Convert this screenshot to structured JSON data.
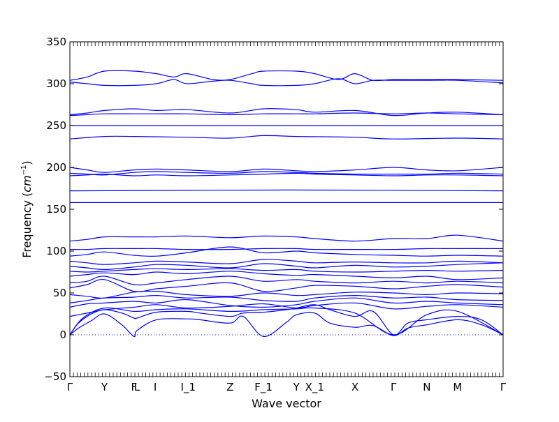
{
  "chart_data": {
    "type": "line",
    "xlabel": "Wave vector",
    "ylabel": "Frequency",
    "ylabel_unit": "cm",
    "ylabel_unit_exp": "−1",
    "ylim": [
      -50,
      350
    ],
    "yticks": [
      -50,
      0,
      50,
      100,
      150,
      200,
      250,
      300,
      350
    ],
    "x_points": [
      {
        "label": "Γ",
        "x": 0.0
      },
      {
        "label": "Y",
        "x": 0.08
      },
      {
        "label": "F",
        "x": 0.148
      },
      {
        "label": "L",
        "x": 0.155
      },
      {
        "label": "I",
        "x": 0.197
      },
      {
        "label": "I_1",
        "x": 0.273
      },
      {
        "label": "Z",
        "x": 0.37
      },
      {
        "label": "F_1",
        "x": 0.447
      },
      {
        "label": "Y",
        "x": 0.523
      },
      {
        "label": "X_1",
        "x": 0.565
      },
      {
        "label": "X",
        "x": 0.658
      },
      {
        "label": "Γ",
        "x": 0.747
      },
      {
        "label": "N",
        "x": 0.824
      },
      {
        "label": "M",
        "x": 0.895
      },
      {
        "label": "Γ",
        "x": 1.0
      }
    ],
    "line_color": "#0000ff",
    "zero_line_color": "#0000ff",
    "series": [
      {
        "x": [
          0,
          0.02,
          0.05,
          0.08,
          0.12,
          0.148,
          0.155,
          0.2,
          0.27,
          0.3,
          0.37,
          0.4,
          0.447,
          0.5,
          0.523,
          0.565,
          0.6,
          0.658,
          0.7,
          0.747,
          0.78,
          0.824,
          0.895,
          0.95,
          1.0
        ],
        "y": [
          0,
          8,
          17,
          25,
          12,
          -2,
          5,
          18,
          19,
          18,
          14,
          22,
          -2,
          15,
          24,
          26,
          14,
          9,
          11,
          -1,
          8,
          12,
          18,
          12,
          0
        ]
      },
      {
        "x": [
          0,
          0.02,
          0.05,
          0.08,
          0.12,
          0.148,
          0.155,
          0.2,
          0.27,
          0.3,
          0.37,
          0.4,
          0.447,
          0.5,
          0.523,
          0.565,
          0.6,
          0.658,
          0.7,
          0.747,
          0.78,
          0.824,
          0.895,
          0.95,
          1.0
        ],
        "y": [
          0,
          14,
          25,
          30,
          26,
          20,
          20,
          27,
          28,
          26,
          22,
          26,
          27,
          30,
          32,
          36,
          30,
          22,
          28,
          0,
          14,
          18,
          22,
          18,
          0
        ]
      },
      {
        "x": [
          0,
          0.03,
          0.08,
          0.148,
          0.2,
          0.27,
          0.37,
          0.447,
          0.523,
          0.565,
          0.658,
          0.747,
          0.824,
          0.895,
          1.0
        ],
        "y": [
          0,
          20,
          32,
          28,
          30,
          31,
          28,
          30,
          31,
          32,
          26,
          0,
          24,
          28,
          0
        ]
      },
      {
        "x": [
          0,
          0.04,
          0.08,
          0.148,
          0.2,
          0.27,
          0.37,
          0.447,
          0.523,
          0.565,
          0.658,
          0.747,
          0.824,
          0.895,
          1.0
        ],
        "y": [
          22,
          26,
          30,
          33,
          36,
          32,
          34,
          37,
          32,
          35,
          38,
          31,
          34,
          36,
          33
        ]
      },
      {
        "x": [
          0,
          0.04,
          0.08,
          0.148,
          0.2,
          0.27,
          0.37,
          0.447,
          0.523,
          0.565,
          0.658,
          0.747,
          0.824,
          0.895,
          1.0
        ],
        "y": [
          33,
          37,
          38,
          40,
          38,
          42,
          35,
          33,
          36,
          40,
          44,
          38,
          40,
          38,
          36
        ]
      },
      {
        "x": [
          0,
          0.04,
          0.08,
          0.148,
          0.2,
          0.27,
          0.37,
          0.447,
          0.523,
          0.565,
          0.658,
          0.747,
          0.824,
          0.895,
          1.0
        ],
        "y": [
          38,
          41,
          44,
          45,
          47,
          44,
          45,
          41,
          40,
          44,
          47,
          44,
          45,
          42,
          41
        ]
      },
      {
        "x": [
          0,
          0.04,
          0.08,
          0.148,
          0.2,
          0.27,
          0.37,
          0.447,
          0.523,
          0.565,
          0.658,
          0.747,
          0.824,
          0.895,
          1.0
        ],
        "y": [
          48,
          46,
          44,
          51,
          52,
          48,
          46,
          50,
          47,
          48,
          51,
          50,
          48,
          50,
          49
        ]
      },
      {
        "x": [
          0,
          0.04,
          0.08,
          0.148,
          0.2,
          0.27,
          0.37,
          0.447,
          0.523,
          0.565,
          0.658,
          0.747,
          0.824,
          0.895,
          1.0
        ],
        "y": [
          56,
          60,
          66,
          52,
          55,
          58,
          62,
          52,
          56,
          59,
          58,
          55,
          58,
          60,
          57
        ]
      },
      {
        "x": [
          0,
          0.04,
          0.08,
          0.148,
          0.2,
          0.27,
          0.37,
          0.447,
          0.523,
          0.565,
          0.658,
          0.747,
          0.824,
          0.895,
          1.0
        ],
        "y": [
          62,
          64,
          70,
          60,
          62,
          66,
          70,
          64,
          66,
          64,
          62,
          64,
          62,
          64,
          62
        ]
      },
      {
        "x": [
          0,
          0.04,
          0.08,
          0.148,
          0.2,
          0.27,
          0.37,
          0.447,
          0.523,
          0.565,
          0.658,
          0.747,
          0.824,
          0.895,
          1.0
        ],
        "y": [
          70,
          72,
          74,
          72,
          75,
          73,
          76,
          73,
          71,
          72,
          70,
          68,
          70,
          66,
          68
        ]
      },
      {
        "x": [
          0,
          0.04,
          0.08,
          0.148,
          0.2,
          0.27,
          0.37,
          0.447,
          0.523,
          0.565,
          0.658,
          0.747,
          0.824,
          0.895,
          1.0
        ],
        "y": [
          76,
          75,
          76,
          78,
          79,
          78,
          79,
          77,
          78,
          76,
          75,
          76,
          77,
          76,
          77
        ]
      },
      {
        "x": [
          0,
          0.04,
          0.08,
          0.148,
          0.2,
          0.27,
          0.37,
          0.447,
          0.523,
          0.565,
          0.658,
          0.747,
          0.824,
          0.895,
          1.0
        ],
        "y": [
          82,
          80,
          78,
          81,
          84,
          83,
          80,
          85,
          82,
          80,
          83,
          81,
          82,
          84,
          86
        ]
      },
      {
        "x": [
          0,
          0.04,
          0.08,
          0.148,
          0.2,
          0.27,
          0.37,
          0.447,
          0.523,
          0.565,
          0.658,
          0.747,
          0.824,
          0.895,
          1.0
        ],
        "y": [
          88,
          86,
          84,
          86,
          88,
          87,
          85,
          90,
          88,
          86,
          87,
          86,
          86,
          88,
          86
        ]
      },
      {
        "x": [
          0,
          0.04,
          0.08,
          0.148,
          0.2,
          0.27,
          0.37,
          0.447,
          0.523,
          0.565,
          0.658,
          0.747,
          0.824,
          0.895,
          1.0
        ],
        "y": [
          94,
          96,
          99,
          95,
          94,
          98,
          105,
          98,
          100,
          98,
          96,
          95,
          94,
          95,
          94
        ]
      },
      {
        "x": [
          0,
          0.04,
          0.08,
          0.148,
          0.2,
          0.27,
          0.37,
          0.447,
          0.523,
          0.565,
          0.658,
          0.747,
          0.824,
          0.895,
          1.0
        ],
        "y": [
          102,
          102,
          103,
          103,
          103,
          102,
          102,
          103,
          103,
          102,
          102,
          102,
          103,
          103,
          103
        ]
      },
      {
        "x": [
          0,
          0.04,
          0.08,
          0.148,
          0.2,
          0.27,
          0.37,
          0.447,
          0.523,
          0.565,
          0.658,
          0.747,
          0.824,
          0.895,
          1.0
        ],
        "y": [
          112,
          114,
          117,
          117,
          117,
          118,
          116,
          118,
          117,
          115,
          112,
          115,
          115,
          119,
          112
        ]
      },
      {
        "x": [
          0,
          0.5,
          1.0
        ],
        "y": [
          158,
          158,
          158
        ]
      },
      {
        "x": [
          0,
          0.5,
          1.0
        ],
        "y": [
          172,
          173,
          172
        ]
      },
      {
        "x": [
          0,
          0.04,
          0.08,
          0.148,
          0.2,
          0.27,
          0.37,
          0.447,
          0.523,
          0.565,
          0.658,
          0.747,
          0.824,
          0.895,
          1.0
        ],
        "y": [
          190,
          191,
          192,
          190,
          191,
          190,
          191,
          192,
          193,
          192,
          191,
          190,
          191,
          191,
          190
        ]
      },
      {
        "x": [
          0,
          0.04,
          0.08,
          0.148,
          0.2,
          0.27,
          0.37,
          0.447,
          0.523,
          0.565,
          0.658,
          0.747,
          0.824,
          0.895,
          1.0
        ],
        "y": [
          193,
          192,
          191,
          194,
          195,
          194,
          193,
          195,
          194,
          193,
          192,
          192,
          192,
          193,
          192
        ]
      },
      {
        "x": [
          0,
          0.04,
          0.08,
          0.148,
          0.2,
          0.27,
          0.37,
          0.447,
          0.523,
          0.565,
          0.658,
          0.747,
          0.824,
          0.895,
          1.0
        ],
        "y": [
          200,
          197,
          194,
          197,
          198,
          197,
          195,
          198,
          196,
          195,
          197,
          200,
          197,
          196,
          200
        ]
      },
      {
        "x": [
          0,
          0.08,
          0.148,
          0.27,
          0.37,
          0.447,
          0.523,
          0.658,
          0.747,
          0.895,
          1.0
        ],
        "y": [
          234,
          237,
          237,
          236,
          235,
          238,
          237,
          236,
          234,
          235,
          234
        ]
      },
      {
        "x": [
          0,
          0.5,
          1.0
        ],
        "y": [
          250,
          250,
          250
        ]
      },
      {
        "x": [
          0,
          0.04,
          0.08,
          0.148,
          0.2,
          0.27,
          0.37,
          0.447,
          0.523,
          0.565,
          0.658,
          0.747,
          0.824,
          0.895,
          1.0
        ],
        "y": [
          263,
          265,
          268,
          270,
          268,
          269,
          265,
          270,
          269,
          266,
          268,
          262,
          265,
          266,
          263
        ]
      },
      {
        "x": [
          0,
          0.04,
          0.08,
          0.148,
          0.2,
          0.27,
          0.37,
          0.447,
          0.523,
          0.565,
          0.658,
          0.747,
          0.824,
          0.895,
          1.0
        ],
        "y": [
          262,
          263,
          264,
          264,
          264,
          264,
          263,
          264,
          264,
          264,
          265,
          264,
          265,
          264,
          263
        ]
      },
      {
        "x": [
          0,
          0.04,
          0.08,
          0.148,
          0.2,
          0.24,
          0.27,
          0.33,
          0.37,
          0.42,
          0.447,
          0.523,
          0.565,
          0.62,
          0.658,
          0.7,
          0.747,
          0.824,
          0.895,
          1.0
        ],
        "y": [
          304,
          308,
          315,
          315,
          312,
          308,
          312,
          305,
          305,
          312,
          315,
          315,
          312,
          305,
          312,
          304,
          305,
          305,
          305,
          304
        ]
      },
      {
        "x": [
          0,
          0.04,
          0.08,
          0.148,
          0.2,
          0.24,
          0.27,
          0.33,
          0.37,
          0.42,
          0.447,
          0.523,
          0.565,
          0.62,
          0.658,
          0.7,
          0.747,
          0.824,
          0.895,
          1.0
        ],
        "y": [
          302,
          300,
          298,
          298,
          300,
          305,
          300,
          303,
          304,
          300,
          298,
          298,
          300,
          306,
          300,
          304,
          304,
          304,
          304,
          301
        ]
      }
    ]
  }
}
